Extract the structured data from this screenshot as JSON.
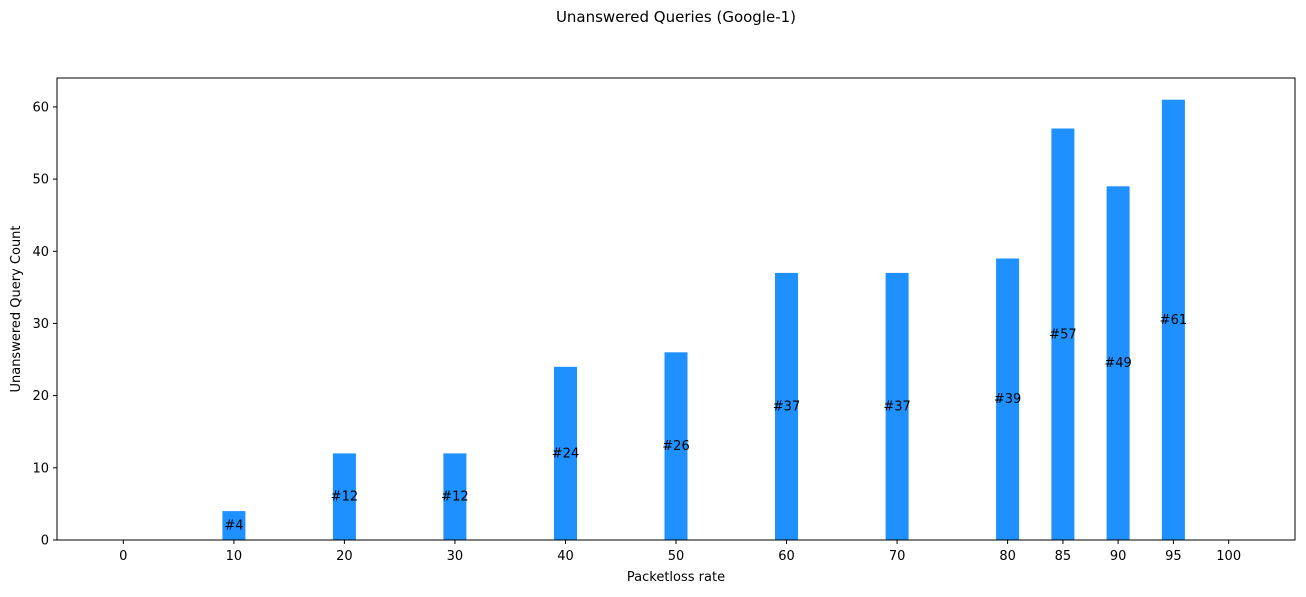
{
  "chart_data": {
    "type": "bar",
    "title": "Unanswered Queries (Google-1)",
    "xlabel": "Packetloss rate",
    "ylabel": "Unanswered Query Count",
    "x": [
      0,
      10,
      20,
      30,
      40,
      50,
      60,
      70,
      80,
      85,
      90,
      95,
      100
    ],
    "x_tick_labels": [
      "0",
      "10",
      "20",
      "30",
      "40",
      "50",
      "60",
      "70",
      "80",
      "85",
      "90",
      "95",
      "100"
    ],
    "values": [
      0,
      4,
      12,
      12,
      24,
      26,
      37,
      37,
      39,
      57,
      49,
      61,
      0
    ],
    "data_labels": [
      "",
      "#4",
      "#12",
      "#12",
      "#24",
      "#26",
      "#37",
      "#37",
      "#39",
      "#57",
      "#49",
      "#61",
      ""
    ],
    "ylim": [
      0,
      64
    ],
    "y_ticks": [
      0,
      10,
      20,
      30,
      40,
      50,
      60
    ],
    "y_tick_labels": [
      "0",
      "10",
      "20",
      "30",
      "40",
      "50",
      "60"
    ],
    "grid": false,
    "bar_color": "#1E90FF"
  }
}
